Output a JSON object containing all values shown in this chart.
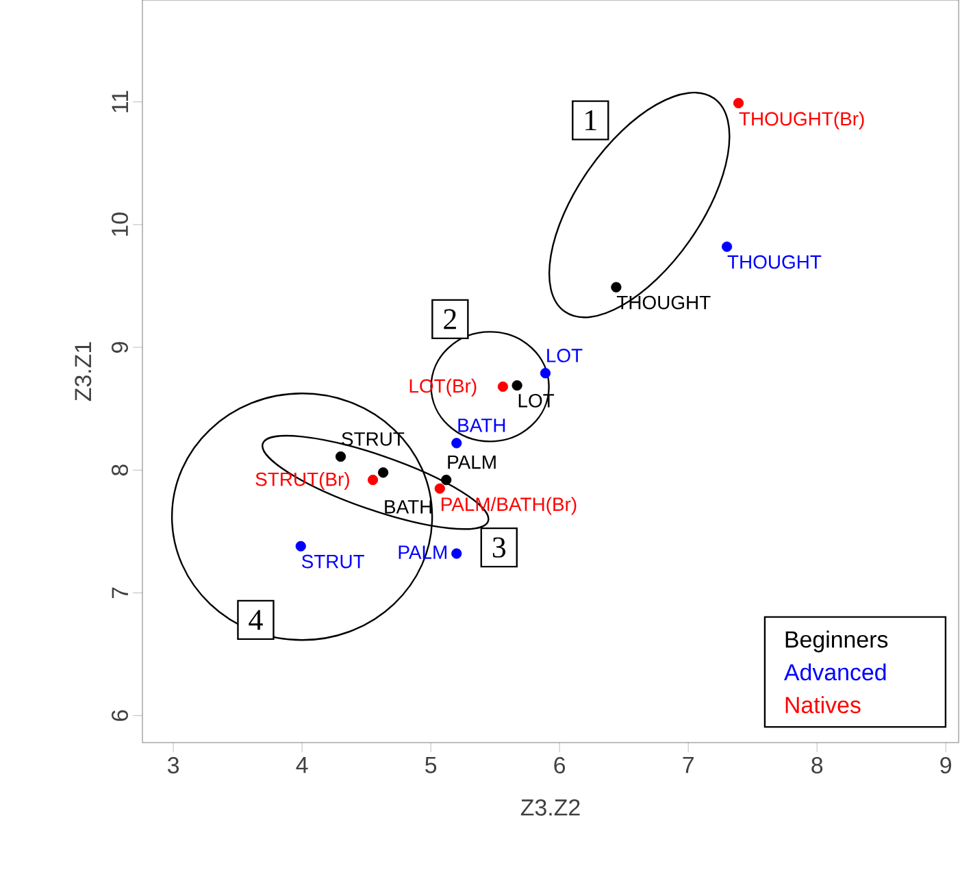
{
  "chart_data": {
    "type": "scatter",
    "xlabel": "Z3.Z2",
    "ylabel": "Z3.Z1",
    "xlim": [
      2.76,
      9.1
    ],
    "ylim": [
      5.78,
      11.83
    ],
    "xticks": [
      3,
      4,
      5,
      6,
      7,
      8,
      9
    ],
    "yticks": [
      6,
      7,
      8,
      9,
      10,
      11
    ],
    "marker": "circle",
    "legend": "bottom right",
    "grid": false,
    "series": [
      {
        "name": "Beginners",
        "color": "#000000",
        "x": [
          6.44,
          5.67,
          4.3,
          4.63,
          5.12
        ],
        "values": [
          9.49,
          8.69,
          8.11,
          7.98,
          7.92
        ]
      },
      {
        "name": "Advanced",
        "color": "#0000ff",
        "x": [
          7.3,
          5.89,
          5.2,
          3.99,
          5.2
        ],
        "values": [
          9.82,
          8.79,
          8.22,
          7.38,
          7.32
        ]
      },
      {
        "name": "Natives",
        "color": "#ff0000",
        "x": [
          7.39,
          5.56,
          4.55,
          5.07
        ],
        "values": [
          10.99,
          8.68,
          7.92,
          7.85
        ]
      }
    ],
    "annotations": [
      {
        "text": "THOUGHT",
        "x": 6.44,
        "y": 9.49
      },
      {
        "text": "LOT",
        "x": 5.67,
        "y": 8.69
      },
      {
        "text": "STRUT",
        "x": 4.3,
        "y": 8.11
      },
      {
        "text": "BATH",
        "x": 4.63,
        "y": 7.98
      },
      {
        "text": "PALM",
        "x": 5.12,
        "y": 7.92
      },
      {
        "text": "THOUGHT",
        "x": 7.3,
        "y": 9.82
      },
      {
        "text": "LOT",
        "x": 5.89,
        "y": 8.79
      },
      {
        "text": "BATH",
        "x": 5.2,
        "y": 8.22
      },
      {
        "text": "STRUT",
        "x": 3.99,
        "y": 7.38
      },
      {
        "text": "PALM",
        "x": 5.2,
        "y": 7.32
      },
      {
        "text": "THOUGHT(Br)",
        "x": 7.39,
        "y": 10.99
      },
      {
        "text": "LOT(Br)",
        "x": 5.56,
        "y": 8.68
      },
      {
        "text": "STRUT(Br)",
        "x": 4.55,
        "y": 7.92
      },
      {
        "text": "PALM/BATH(Br)",
        "x": 5.07,
        "y": 7.85
      },
      {
        "text": "1",
        "x": 6.24,
        "y": 10.85
      },
      {
        "text": "2",
        "x": 5.15,
        "y": 9.23
      },
      {
        "text": "3",
        "x": 5.53,
        "y": 7.37
      },
      {
        "text": "4",
        "x": 3.64,
        "y": 6.78
      }
    ]
  }
}
